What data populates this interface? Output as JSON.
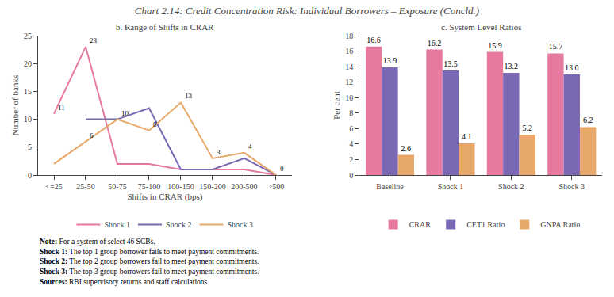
{
  "title": "Chart 2.14: Credit Concentration Risk: Individual Borrowers – Exposure (Concld.)",
  "notes": [
    {
      "label": "Note:",
      "text": "For a system of select 46 SCBs."
    },
    {
      "label": "Shock 1:",
      "text": "The top 1 group borrower fails to meet payment commitments."
    },
    {
      "label": "Shock 2:",
      "text": "The top 2 group borrowers fail to meet payment commitments."
    },
    {
      "label": "Shock 3:",
      "text": "The top 3 group borrowers fail to meet payment commitments."
    },
    {
      "label": "Sources:",
      "text": "RBI supervisory returns and staff calculations."
    }
  ],
  "chart_data": [
    {
      "type": "line",
      "title": "b. Range of Shifts in CRAR",
      "categories": [
        "<=25",
        "25-50",
        "50-75",
        "75-100",
        "100-150",
        "150-200",
        "200-500",
        ">500"
      ],
      "series": [
        {
          "name": "Shock 1",
          "color": "#e8799e",
          "values": [
            11,
            23,
            2,
            2,
            1,
            1,
            1,
            0
          ]
        },
        {
          "name": "Shock 2",
          "color": "#7b68b5",
          "values": [
            null,
            10,
            10,
            12,
            1,
            1,
            3,
            0
          ]
        },
        {
          "name": "Shock 3",
          "color": "#e8a86a",
          "values": [
            2,
            6,
            10,
            8,
            13,
            3,
            4,
            0
          ]
        }
      ],
      "xlabel": "Shifts in CRAR (bps)",
      "ylabel": "Number of banks",
      "ylim": [
        0,
        25
      ],
      "yticks": [
        0,
        5,
        10,
        15,
        20,
        25
      ],
      "grid": false,
      "legend": "bottom",
      "annotations": [
        {
          "x": "<=25",
          "y": 11,
          "text": "11"
        },
        {
          "x": "25-50",
          "y": 23,
          "text": "23"
        },
        {
          "x": "50-75",
          "y": 10,
          "text": "10"
        },
        {
          "x": "25-50",
          "y": 6,
          "text": "6"
        },
        {
          "x": "75-100",
          "y": 8,
          "text": "8"
        },
        {
          "x": "100-150",
          "y": 13,
          "text": "13"
        },
        {
          "x": "150-200",
          "y": 3,
          "text": "3"
        },
        {
          "x": "200-500",
          "y": 4,
          "text": "4"
        },
        {
          "x": ">500",
          "y": 0,
          "text": "0"
        }
      ]
    },
    {
      "type": "bar",
      "title": "c. System Level Ratios",
      "categories": [
        "Baseline",
        "Shock 1",
        "Shock 2",
        "Shock 3"
      ],
      "series": [
        {
          "name": "CRAR",
          "color": "#e8799e",
          "values": [
            16.6,
            16.2,
            15.9,
            15.7
          ]
        },
        {
          "name": "CET1 Ratio",
          "color": "#7b68b5",
          "values": [
            13.9,
            13.5,
            13.2,
            13.0
          ],
          "value_labels": [
            "13.9",
            "13.5",
            "13.2",
            "13.0"
          ]
        },
        {
          "name": "GNPA Ratio",
          "color": "#e8a86a",
          "values": [
            2.6,
            4.1,
            5.2,
            6.2
          ]
        }
      ],
      "ylabel": "Per cent",
      "ylim": [
        0,
        18
      ],
      "yticks": [
        0,
        2,
        4,
        6,
        8,
        10,
        12,
        14,
        16,
        18
      ],
      "grid": false,
      "legend": "bottom",
      "data_labels": true
    }
  ]
}
